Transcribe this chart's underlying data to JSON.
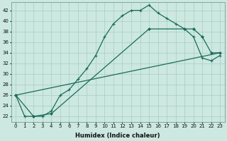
{
  "xlabel": "Humidex (Indice chaleur)",
  "ylabel": "",
  "bg_color": "#cce8e0",
  "grid_color": "#a8ccc4",
  "line_color": "#1a6b5a",
  "xlim": [
    -0.5,
    23.5
  ],
  "ylim": [
    21,
    43.5
  ],
  "xticks": [
    0,
    1,
    2,
    3,
    4,
    5,
    6,
    7,
    8,
    9,
    10,
    11,
    12,
    13,
    14,
    15,
    16,
    17,
    18,
    19,
    20,
    21,
    22,
    23
  ],
  "yticks": [
    22,
    24,
    26,
    28,
    30,
    32,
    34,
    36,
    38,
    40,
    42
  ],
  "line1_x": [
    0,
    1,
    2,
    3,
    4,
    5,
    6,
    7,
    8,
    9,
    10,
    11,
    12,
    13,
    14,
    15,
    16,
    17,
    18,
    19,
    20,
    21,
    22,
    23
  ],
  "line1_y": [
    26,
    22,
    22,
    22,
    23,
    26,
    27,
    29,
    31,
    33.5,
    37,
    39.5,
    41,
    42,
    42,
    43,
    41.5,
    40.5,
    39.5,
    38.5,
    37,
    33,
    32.5,
    33.5
  ],
  "line2_x": [
    0,
    2,
    4,
    15,
    19,
    20,
    21,
    22,
    23
  ],
  "line2_y": [
    26,
    22,
    22.5,
    38.5,
    38.5,
    38.5,
    37,
    34,
    34
  ],
  "line3_x": [
    0,
    23
  ],
  "line3_y": [
    26,
    34
  ]
}
